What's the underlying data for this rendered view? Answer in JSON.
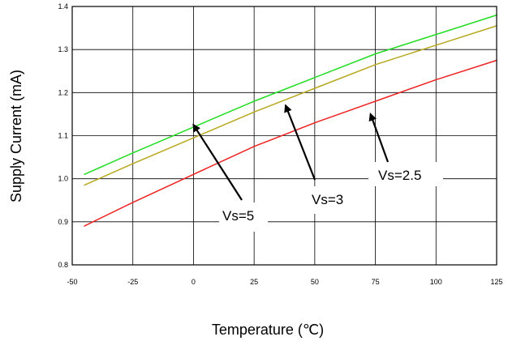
{
  "chart_data": {
    "type": "line",
    "title": "",
    "xlabel": "Temperature (℃)",
    "ylabel": "Supply Current (mA)",
    "xlim": [
      -50,
      125
    ],
    "ylim": [
      0.8,
      1.4
    ],
    "x_ticks": [
      "-50",
      "-25",
      "0",
      "25",
      "50",
      "75",
      "100",
      "125"
    ],
    "y_ticks": [
      "0.8",
      "0.9",
      "1.0",
      "1.1",
      "1.2",
      "1.3",
      "1.4"
    ],
    "grid": true,
    "x": [
      -45,
      -25,
      0,
      25,
      50,
      75,
      100,
      125
    ],
    "series": [
      {
        "color": "#22dd22",
        "values": [
          1.01,
          1.06,
          1.12,
          1.18,
          1.235,
          1.29,
          1.335,
          1.38
        ]
      },
      {
        "color": "#b8a81e",
        "values": [
          0.985,
          1.035,
          1.095,
          1.155,
          1.21,
          1.265,
          1.31,
          1.355
        ]
      },
      {
        "color": "#ee2222",
        "values": [
          0.89,
          0.945,
          1.01,
          1.075,
          1.13,
          1.18,
          1.23,
          1.275
        ]
      }
    ],
    "annotations": [
      {
        "text": "Vs=5",
        "arrow_to": [
          0,
          1.125
        ]
      },
      {
        "text": "Vs=3",
        "arrow_to": [
          38,
          1.17
        ]
      },
      {
        "text": "Vs=2.5",
        "arrow_to": [
          73,
          1.15
        ]
      }
    ]
  }
}
